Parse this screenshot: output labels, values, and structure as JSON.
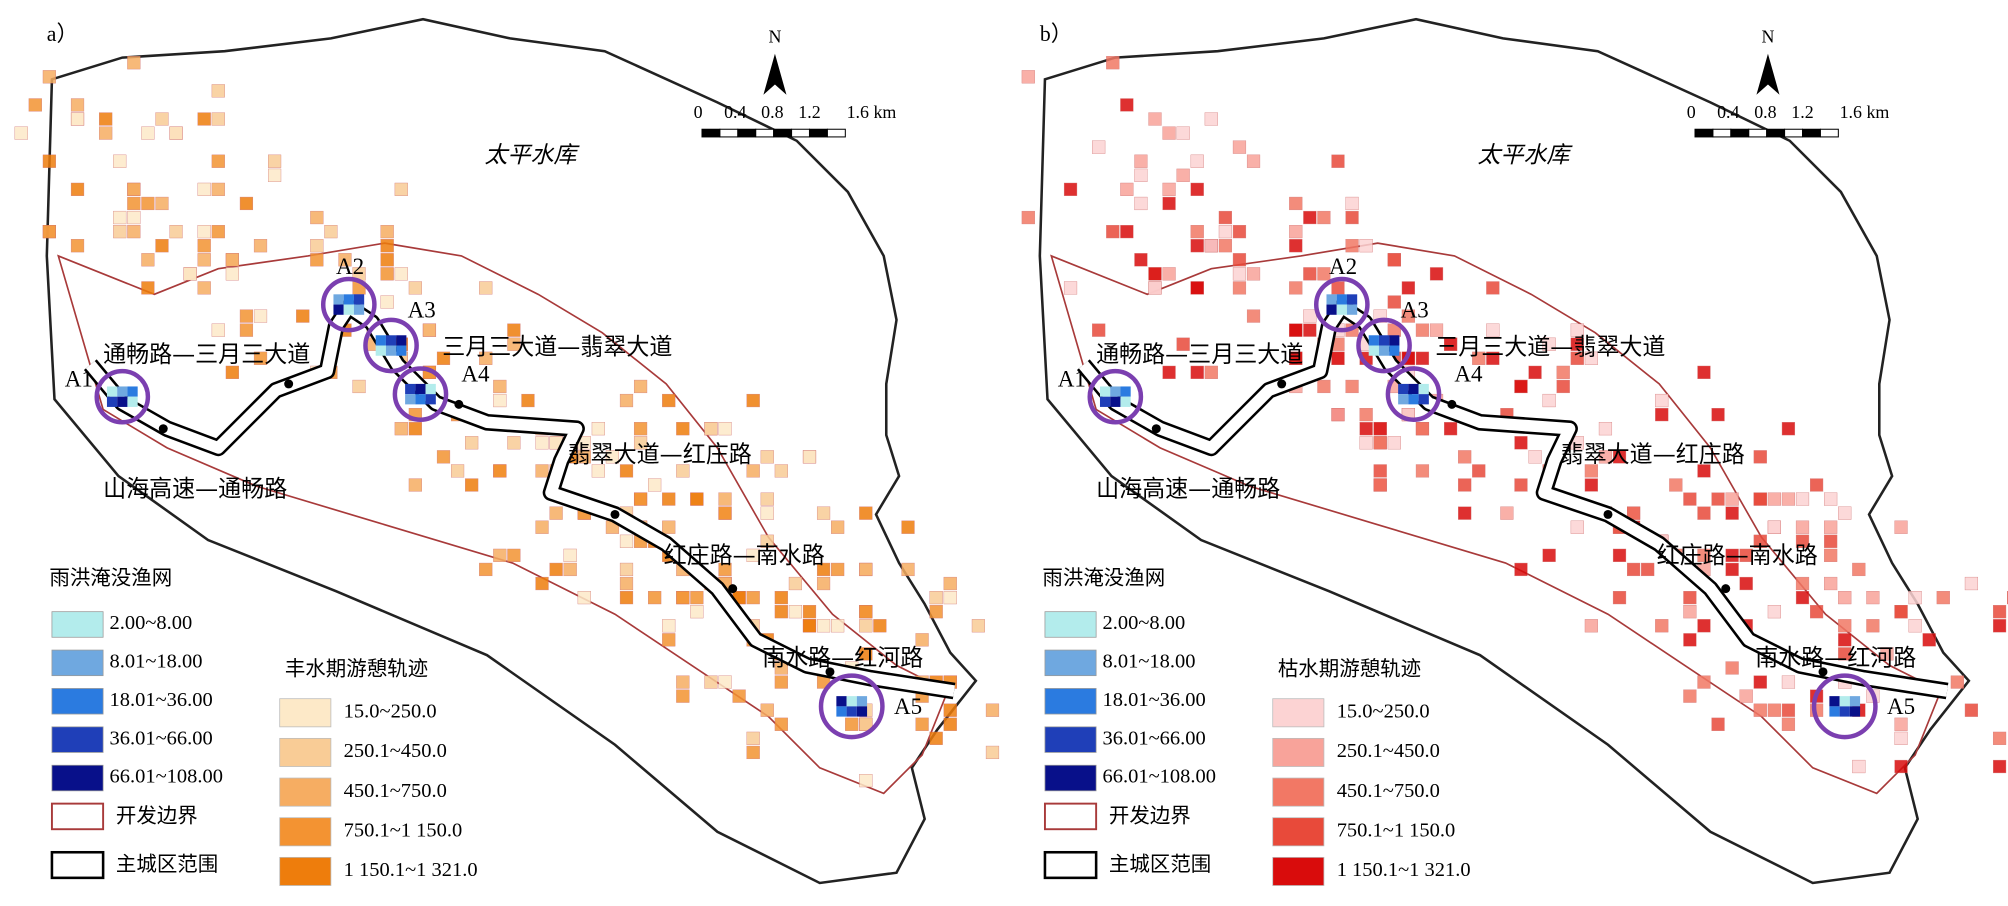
{
  "panels": [
    {
      "label": "a）",
      "north": "N",
      "scale": [
        "0",
        "0.4",
        "0.8",
        "1.2",
        "1.6 km"
      ],
      "reservoir": "太平水库",
      "roads": [
        "通畅路—三月三大道",
        "三月三大道—翡翠大道",
        "翡翠大道—红庄路",
        "红庄路—南水路",
        "南水路—红河路",
        "山海高速—通畅路"
      ],
      "hotspots": [
        "A1",
        "A2",
        "A3",
        "A4",
        "A5"
      ],
      "legend_net": {
        "title": "雨洪淹没渔网",
        "items": [
          {
            "label": "2.00~8.00",
            "color": "#b3ecec"
          },
          {
            "label": "8.01~18.00",
            "color": "#6fa8e0"
          },
          {
            "label": "18.01~36.00",
            "color": "#2b7be0"
          },
          {
            "label": "36.01~66.00",
            "color": "#1f3fb8"
          },
          {
            "label": "66.01~108.00",
            "color": "#08108a"
          }
        ]
      },
      "legend_track": {
        "title": "丰水期游憩轨迹",
        "items": [
          {
            "label": "15.0~250.0",
            "color": "#fde9c8"
          },
          {
            "label": "250.1~450.0",
            "color": "#f9cc96"
          },
          {
            "label": "450.1~750.0",
            "color": "#f6ad62"
          },
          {
            "label": "750.1~1 150.0",
            "color": "#f39332"
          },
          {
            "label": "1 150.1~1 321.0",
            "color": "#ee7d0c"
          }
        ]
      },
      "boundary": "开发边界",
      "urban": "主城区范围"
    },
    {
      "label": "b）",
      "north": "N",
      "scale": [
        "0",
        "0.4",
        "0.8",
        "1.2",
        "1.6 km"
      ],
      "reservoir": "太平水库",
      "roads": [
        "通畅路—三月三大道",
        "三月三大道—翡翠大道",
        "翡翠大道—红庄路",
        "红庄路—南水路",
        "南水路—红河路",
        "山海高速—通畅路"
      ],
      "hotspots": [
        "A1",
        "A2",
        "A3",
        "A4",
        "A5"
      ],
      "legend_net": {
        "title": "雨洪淹没渔网",
        "items": [
          {
            "label": "2.00~8.00",
            "color": "#b3ecec"
          },
          {
            "label": "8.01~18.00",
            "color": "#6fa8e0"
          },
          {
            "label": "18.01~36.00",
            "color": "#2b7be0"
          },
          {
            "label": "36.01~66.00",
            "color": "#1f3fb8"
          },
          {
            "label": "66.01~108.00",
            "color": "#08108a"
          }
        ]
      },
      "legend_track": {
        "title": "枯水期游憩轨迹",
        "items": [
          {
            "label": "15.0~250.0",
            "color": "#fcd3d3"
          },
          {
            "label": "250.1~450.0",
            "color": "#f8a39a"
          },
          {
            "label": "450.1~750.0",
            "color": "#f27865"
          },
          {
            "label": "750.1~1 150.0",
            "color": "#e84a3a"
          },
          {
            "label": "1 150.1~1 321.0",
            "color": "#d90c0c"
          }
        ]
      },
      "boundary": "开发边界",
      "urban": "主城区范围"
    }
  ]
}
